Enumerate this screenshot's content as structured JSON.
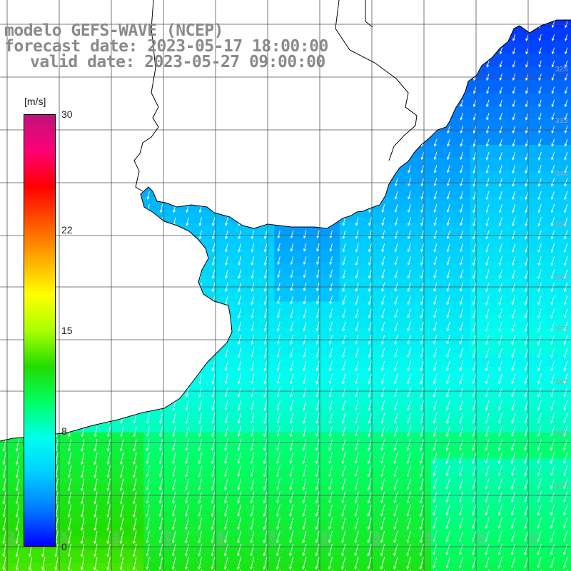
{
  "title": {
    "line1": "modelo GEFS-WAVE (NCEP)",
    "line2": "forecast date: 2023-05-17 18:00:00",
    "line3": "valid date: 2023-05-27 09:00:00"
  },
  "colorbar": {
    "units": "[m/s]",
    "min": 0,
    "max": 30,
    "ticks": [
      {
        "label": "30",
        "value": 30
      },
      {
        "label": "22",
        "value": 22
      },
      {
        "label": "15",
        "value": 15
      },
      {
        "label": "8",
        "value": 8
      },
      {
        "label": "0",
        "value": 0
      }
    ],
    "colors": [
      "#0000ff",
      "#0077ff",
      "#00ccff",
      "#00ffee",
      "#00ff66",
      "#22dd00",
      "#aaff00",
      "#ffff00",
      "#ffaa00",
      "#ff5500",
      "#ff0000",
      "#ff0077",
      "#c0127a"
    ]
  },
  "map": {
    "land_color": "#ffffff",
    "grid_color": "#555555",
    "coast_color": "#000000",
    "arrow_color": "#ffffff",
    "lat_labels": [
      "32S",
      "33S",
      "34S",
      "35S",
      "36S",
      "37S",
      "38S",
      "39S",
      "40S"
    ],
    "lon_labels": [
      "62W",
      "61W",
      "60W",
      "59W",
      "58W",
      "57W",
      "56W",
      "55W",
      "54W",
      "53W",
      "52W"
    ]
  }
}
